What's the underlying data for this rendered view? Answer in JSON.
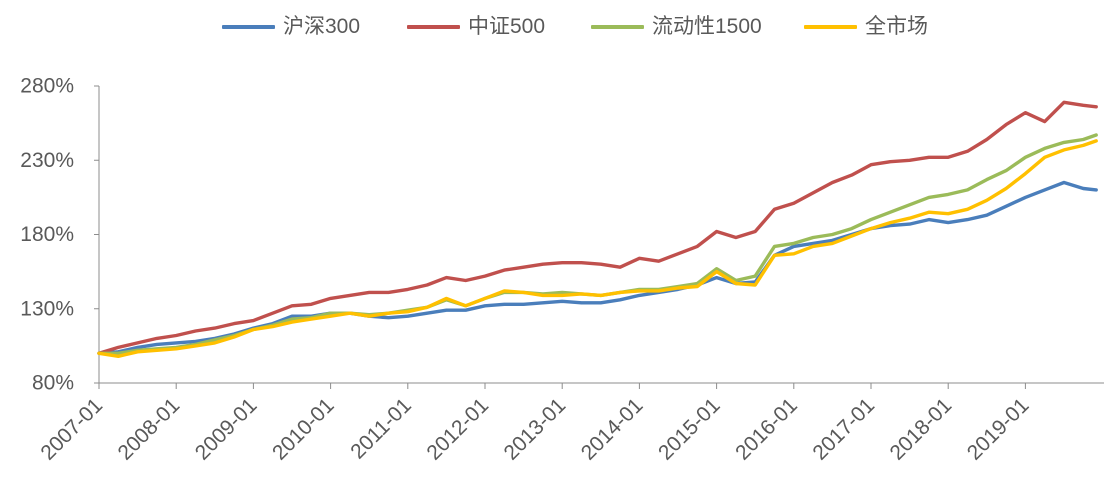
{
  "chart_data": {
    "type": "line",
    "legend": "top",
    "grid": false,
    "ylim": [
      80,
      280
    ],
    "y_ticks": [
      {
        "value": 80,
        "label": "80%"
      },
      {
        "value": 130,
        "label": "130%"
      },
      {
        "value": 180,
        "label": "180%"
      },
      {
        "value": 230,
        "label": "230%"
      },
      {
        "value": 280,
        "label": "280%"
      }
    ],
    "x_ticks": [
      "2007-01",
      "2008-01",
      "2009-01",
      "2010-01",
      "2011-01",
      "2012-01",
      "2013-01",
      "2014-01",
      "2015-01",
      "2016-01",
      "2017-01",
      "2018-01",
      "2019-01"
    ],
    "x": [
      "2007-01",
      "2007-04",
      "2007-07",
      "2007-10",
      "2008-01",
      "2008-04",
      "2008-07",
      "2008-10",
      "2009-01",
      "2009-04",
      "2009-07",
      "2009-10",
      "2010-01",
      "2010-04",
      "2010-07",
      "2010-10",
      "2011-01",
      "2011-04",
      "2011-07",
      "2011-10",
      "2012-01",
      "2012-04",
      "2012-07",
      "2012-10",
      "2013-01",
      "2013-04",
      "2013-07",
      "2013-10",
      "2014-01",
      "2014-04",
      "2014-07",
      "2014-10",
      "2015-01",
      "2015-04",
      "2015-07",
      "2015-10",
      "2016-01",
      "2016-04",
      "2016-07",
      "2016-10",
      "2017-01",
      "2017-04",
      "2017-07",
      "2017-10",
      "2018-01",
      "2018-04",
      "2018-07",
      "2018-10",
      "2019-01",
      "2019-04",
      "2019-07",
      "2019-10",
      "2019-12"
    ],
    "series": [
      {
        "name": "沪深300",
        "color": "#4A7EBB",
        "values": [
          100,
          101,
          104,
          106,
          107,
          108,
          110,
          113,
          117,
          120,
          125,
          125,
          127,
          127,
          125,
          124,
          125,
          127,
          129,
          129,
          132,
          133,
          133,
          134,
          135,
          134,
          134,
          136,
          139,
          141,
          143,
          146,
          151,
          147,
          148,
          166,
          172,
          174,
          176,
          180,
          184,
          186,
          187,
          190,
          188,
          190,
          193,
          199,
          205,
          210,
          215,
          211,
          210
        ]
      },
      {
        "name": "中证500",
        "color": "#C0504D",
        "values": [
          100,
          104,
          107,
          110,
          112,
          115,
          117,
          120,
          122,
          127,
          132,
          133,
          137,
          139,
          141,
          141,
          143,
          146,
          151,
          149,
          152,
          156,
          158,
          160,
          161,
          161,
          160,
          158,
          164,
          162,
          167,
          172,
          182,
          178,
          182,
          197,
          201,
          208,
          215,
          220,
          227,
          229,
          230,
          232,
          232,
          236,
          244,
          254,
          262,
          256,
          269,
          267,
          266
        ]
      },
      {
        "name": "流动性1500",
        "color": "#9BBB59",
        "values": [
          100,
          100,
          102,
          103,
          104,
          106,
          109,
          112,
          116,
          119,
          123,
          124,
          127,
          127,
          126,
          127,
          129,
          131,
          136,
          132,
          137,
          141,
          141,
          140,
          141,
          140,
          139,
          141,
          143,
          143,
          145,
          147,
          157,
          149,
          152,
          172,
          174,
          178,
          180,
          184,
          190,
          195,
          200,
          205,
          207,
          210,
          217,
          223,
          232,
          238,
          242,
          244,
          247
        ]
      },
      {
        "name": "全市场",
        "color": "#FFC000",
        "values": [
          100,
          98,
          101,
          102,
          103,
          105,
          107,
          111,
          116,
          118,
          121,
          123,
          125,
          127,
          125,
          127,
          128,
          131,
          137,
          132,
          137,
          142,
          141,
          139,
          139,
          140,
          139,
          141,
          142,
          142,
          144,
          145,
          155,
          147,
          146,
          166,
          167,
          172,
          174,
          179,
          184,
          188,
          191,
          195,
          194,
          197,
          203,
          211,
          221,
          232,
          237,
          240,
          243
        ]
      }
    ]
  }
}
